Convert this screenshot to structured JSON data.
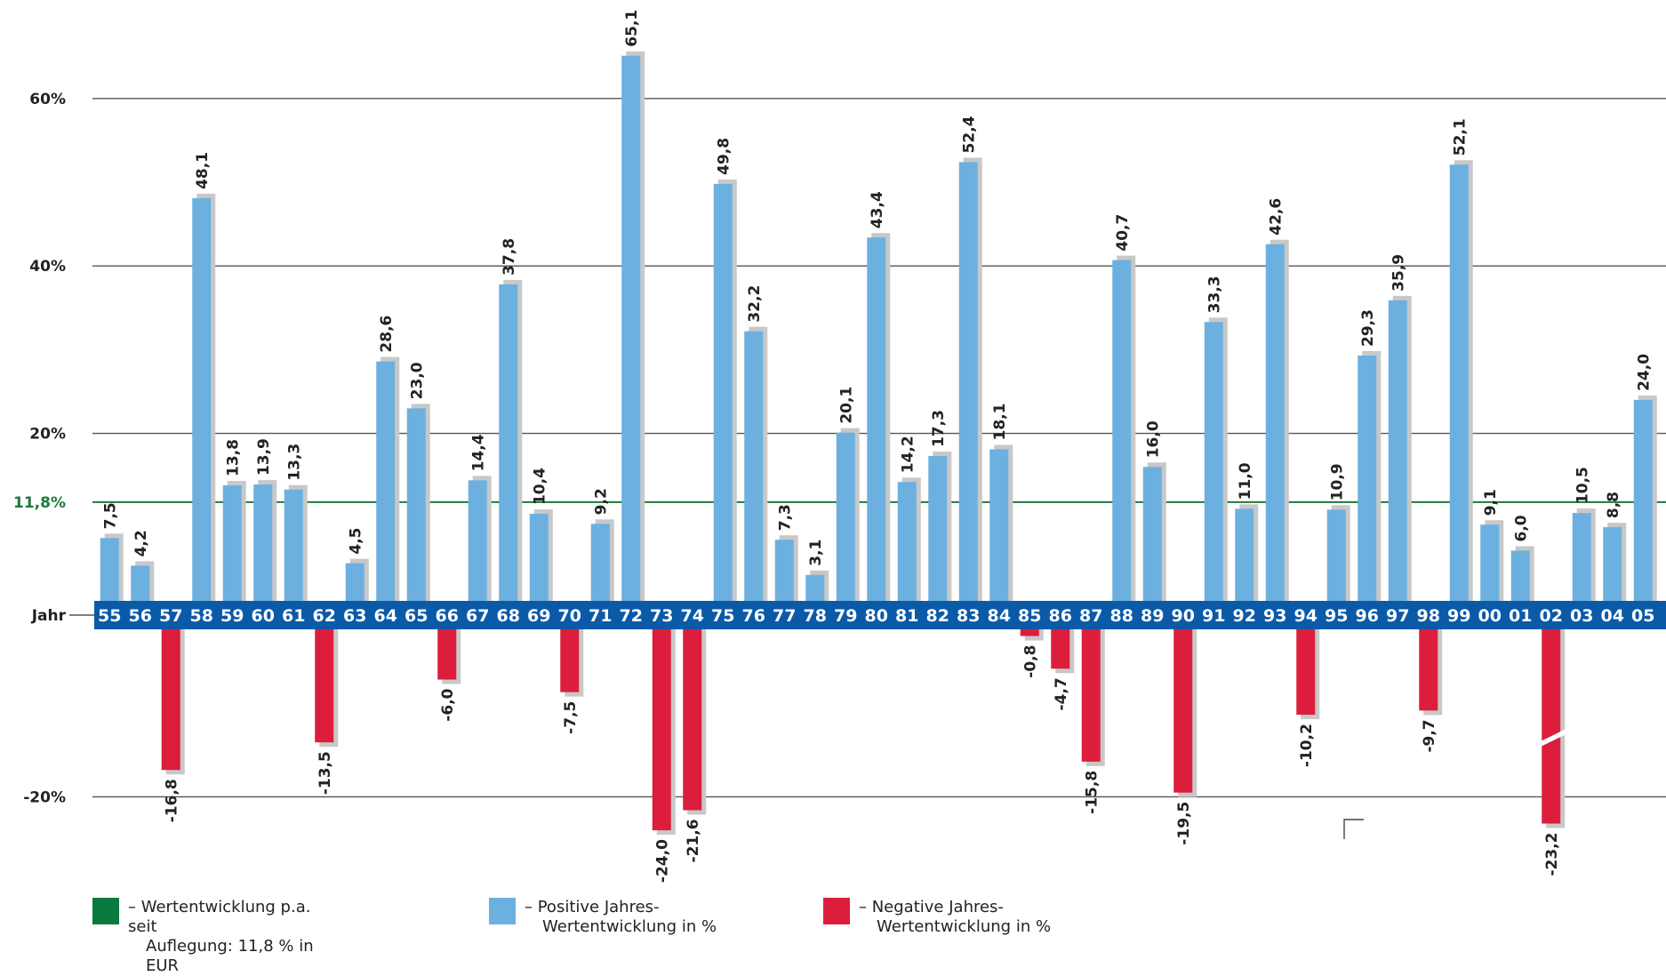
{
  "chart_data": {
    "type": "bar",
    "categories": [
      "55",
      "56",
      "57",
      "58",
      "59",
      "60",
      "61",
      "62",
      "63",
      "64",
      "65",
      "66",
      "67",
      "68",
      "69",
      "70",
      "71",
      "72",
      "73",
      "74",
      "75",
      "76",
      "77",
      "78",
      "79",
      "80",
      "81",
      "82",
      "83",
      "84",
      "85",
      "86",
      "87",
      "88",
      "89",
      "90",
      "91",
      "92",
      "93",
      "94",
      "95",
      "96",
      "97",
      "98",
      "99",
      "00",
      "01",
      "02",
      "03",
      "04",
      "05"
    ],
    "values": [
      7.5,
      4.2,
      -16.8,
      48.1,
      13.8,
      13.9,
      13.3,
      -13.5,
      4.5,
      28.6,
      23.0,
      -6.0,
      14.4,
      37.8,
      10.4,
      -7.5,
      9.2,
      65.1,
      -24.0,
      -21.6,
      49.8,
      32.2,
      7.3,
      3.1,
      20.1,
      43.4,
      14.2,
      17.3,
      52.4,
      18.1,
      -0.8,
      -4.7,
      -15.8,
      40.7,
      16.0,
      -19.5,
      33.3,
      11.0,
      42.6,
      -10.2,
      10.9,
      29.3,
      35.9,
      -9.7,
      52.1,
      9.1,
      6.0,
      -23.2,
      10.5,
      8.8,
      24.0
    ],
    "value_labels": [
      "7,5",
      "4,2",
      "-16,8",
      "48,1",
      "13,8",
      "13,9",
      "13,3",
      "-13,5",
      "4,5",
      "28,6",
      "23,0",
      "-6,0",
      "14,4",
      "37,8",
      "10,4",
      "-7,5",
      "9,2",
      "65,1",
      "-24,0",
      "-21,6",
      "49,8",
      "32,2",
      "7,3",
      "3,1",
      "20,1",
      "43,4",
      "14,2",
      "17,3",
      "52,4",
      "18,1",
      "-0,8",
      "-4,7",
      "-15,8",
      "40,7",
      "16,0",
      "-19,5",
      "33,3",
      "11,0",
      "42,6",
      "-10,2",
      "10,9",
      "29,3",
      "35,9",
      "-9,7",
      "52,1",
      "9,1",
      "6,0",
      "-23,2",
      "10,5",
      "8,8",
      "24,0"
    ],
    "x_axis_title": "Jahr",
    "yticks": [
      -20,
      20,
      40,
      60
    ],
    "ytick_labels": [
      "-20%",
      "20%",
      "40%",
      "60%"
    ],
    "ylim": [
      -20,
      60
    ],
    "average": {
      "value": 11.8,
      "label": "11,8%"
    },
    "broken_bars": [
      "02"
    ],
    "grid": true,
    "colors": {
      "positive": "#6cb0e0",
      "negative": "#dc1e3c",
      "average": "#1e7a3c",
      "axis_band": "#0b5aa8",
      "shadow": "#c8c8c8"
    },
    "legend": [
      {
        "color": "#0a7a40",
        "line1": "– Wertentwicklung p.a. seit",
        "line2": "Auflegung: 11,8 % in EUR"
      },
      {
        "color": "#6cb0e0",
        "line1": "– Positive Jahres-",
        "line2": "Wertentwicklung in %"
      },
      {
        "color": "#dc1e3c",
        "line1": "– Negative Jahres-",
        "line2": "Wertentwicklung in %"
      }
    ]
  }
}
